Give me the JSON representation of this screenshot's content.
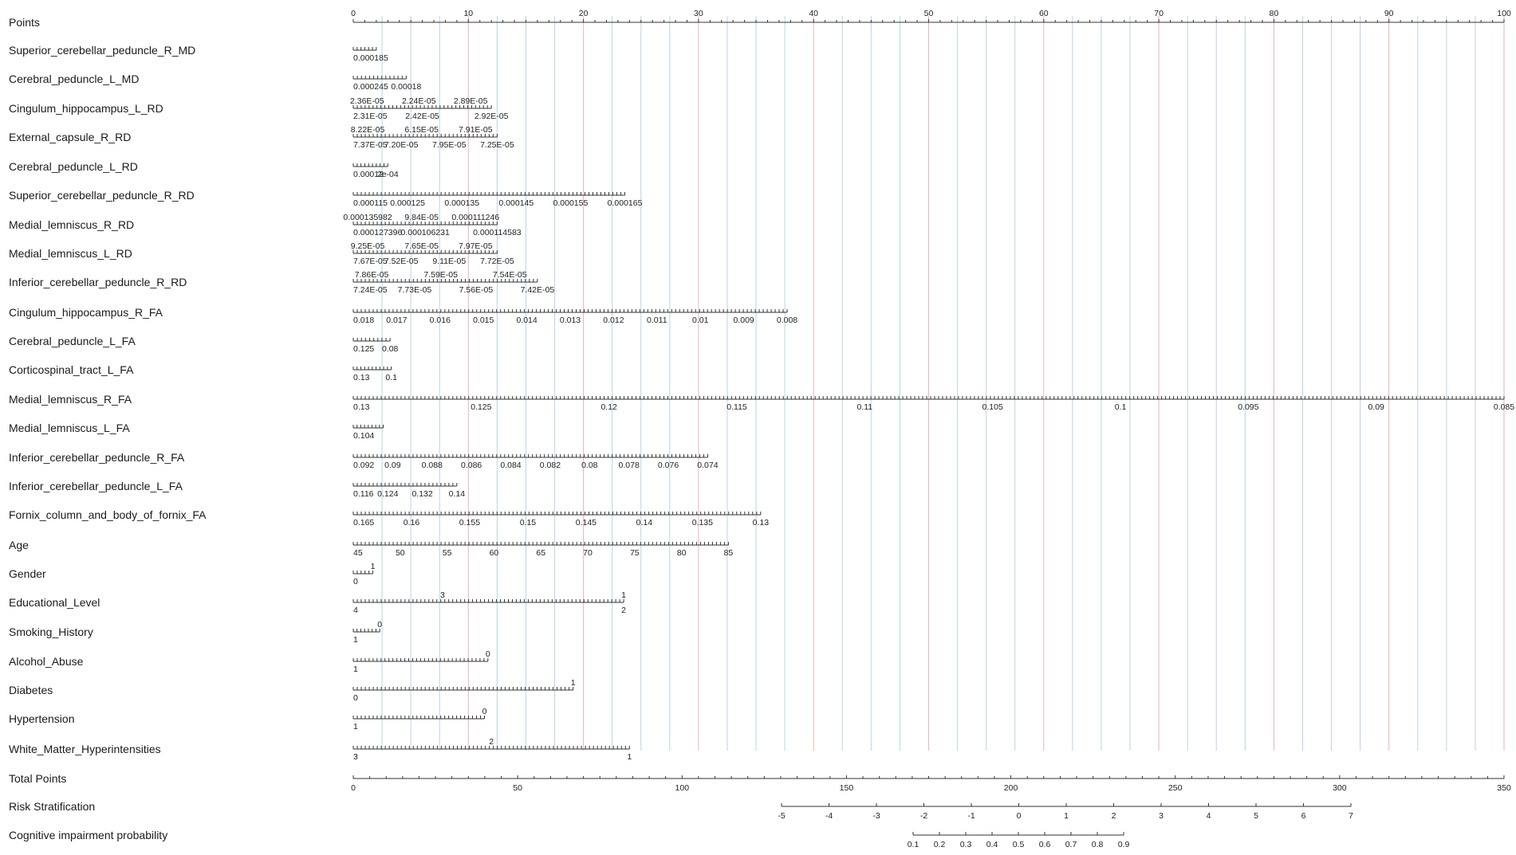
{
  "colors": {
    "grid_blue": "#bcd3e6",
    "grid_red": "#e6b6b6",
    "axis": "#333333",
    "text": "#1a1a1a"
  },
  "chart_data": {
    "type": "nomogram",
    "grid": true,
    "point_range": [
      0,
      100
    ],
    "variables": [
      {
        "name": "Points",
        "ticks_above": [
          0,
          10,
          20,
          30,
          40,
          50,
          60,
          70,
          80,
          90,
          100
        ],
        "ticks_below": [],
        "range": [
          0,
          100
        ]
      },
      {
        "name": "Superior_cerebellar_peduncle_R_MD",
        "ticks_above": [],
        "ticks_below": [
          "0.000185"
        ],
        "range": [
          0,
          2
        ]
      },
      {
        "name": "Cerebral_peduncle_L_MD",
        "ticks_above": [],
        "ticks_below": [
          "0.000245",
          "0.00018"
        ],
        "range": [
          0,
          4.6
        ]
      },
      {
        "name": "Cingulum_hippocampus_L_RD",
        "ticks_above": [
          "2.36E-05",
          "2.24E-05",
          "2.89E-05"
        ],
        "ticks_below": [
          "2.31E-05",
          "2.42E-05",
          "2.92E-05"
        ],
        "range": [
          0,
          12
        ]
      },
      {
        "name": "External_capsule_R_RD",
        "ticks_above": [
          "8.22E-05",
          "6.15E-05",
          "7.91E-05"
        ],
        "ticks_below": [
          "7.37E-05",
          "7.20E-05",
          "7.95E-05",
          "7.25E-05"
        ],
        "range": [
          0,
          12.5
        ]
      },
      {
        "name": "Cerebral_peduncle_L_RD",
        "ticks_above": [],
        "ticks_below": [
          "0.00012",
          "2e-04"
        ],
        "range": [
          0,
          3
        ]
      },
      {
        "name": "Superior_cerebellar_peduncle_R_RD",
        "ticks_above": [],
        "ticks_below": [
          "0.000115",
          "0.000125",
          "0.000135",
          "0.000145",
          "0.000155",
          "0.000165"
        ],
        "range": [
          0,
          23.6
        ]
      },
      {
        "name": "Medial_lemniscus_R_RD",
        "ticks_above": [
          "0.000135982",
          "9.84E-05",
          "0.000111246"
        ],
        "ticks_below": [
          "0.000127396",
          "0.000106231",
          "0.000114583"
        ],
        "range": [
          0,
          12.5
        ]
      },
      {
        "name": "Medial_lemniscus_L_RD",
        "ticks_above": [
          "9.25E-05",
          "7.65E-05",
          "7.97E-05"
        ],
        "ticks_below": [
          "7.67E-05",
          "7.52E-05",
          "9.11E-05",
          "7.72E-05"
        ],
        "range": [
          0,
          12.5
        ]
      },
      {
        "name": "Inferior_cerebellar_peduncle_R_RD",
        "ticks_above": [
          "7.86E-05",
          "7.59E-05",
          "7.54E-05"
        ],
        "ticks_below": [
          "7.24E-05",
          "7.73E-05",
          "7.56E-05",
          "7.42E-05"
        ],
        "range": [
          0,
          16
        ]
      },
      {
        "name": "Cingulum_hippocampus_R_FA",
        "ticks_above": [],
        "ticks_below": [
          "0.018",
          "0.017",
          "0.016",
          "0.015",
          "0.014",
          "0.013",
          "0.012",
          "0.011",
          "0.01",
          "0.009",
          "0.008"
        ],
        "range": [
          0,
          37.7
        ]
      },
      {
        "name": "Cerebral_peduncle_L_FA",
        "ticks_above": [],
        "ticks_below": [
          "0.125",
          "0.08"
        ],
        "range": [
          0,
          3.2
        ]
      },
      {
        "name": "Corticospinal_tract_L_FA",
        "ticks_above": [],
        "ticks_below": [
          "0.13",
          "0.1"
        ],
        "range": [
          0,
          3.3
        ]
      },
      {
        "name": "Medial_lemniscus_R_FA",
        "ticks_above": [],
        "ticks_below": [
          "0.13",
          "0.125",
          "0.12",
          "0.115",
          "0.11",
          "0.105",
          "0.1",
          "0.095",
          "0.09",
          "0.085"
        ],
        "range": [
          0,
          100
        ]
      },
      {
        "name": "Medial_lemniscus_L_FA",
        "ticks_above": [],
        "ticks_below": [
          "0.104"
        ],
        "range": [
          0,
          2.6
        ]
      },
      {
        "name": "Inferior_cerebellar_peduncle_R_FA",
        "ticks_above": [],
        "ticks_below": [
          "0.092",
          "0.09",
          "0.088",
          "0.086",
          "0.084",
          "0.082",
          "0.08",
          "0.078",
          "0.076",
          "0.074"
        ],
        "range": [
          0,
          30.8
        ]
      },
      {
        "name": "Inferior_cerebellar_peduncle_L_FA",
        "ticks_above": [],
        "ticks_below": [
          "0.116",
          "0.124",
          "0.132",
          "0.14"
        ],
        "range": [
          0,
          9
        ]
      },
      {
        "name": "Fornix_column_and_body_of_fornix_FA",
        "ticks_above": [],
        "ticks_below": [
          "0.165",
          "0.16",
          "0.155",
          "0.15",
          "0.145",
          "0.14",
          "0.135",
          "0.13"
        ],
        "range": [
          0,
          35.4
        ]
      },
      {
        "name": "Age",
        "ticks_above": [],
        "ticks_below": [
          "45",
          "50",
          "55",
          "60",
          "65",
          "70",
          "75",
          "80",
          "85"
        ],
        "range": [
          0,
          32.6
        ]
      },
      {
        "name": "Gender",
        "ticks_above": [
          "1"
        ],
        "ticks_below": [
          "0"
        ],
        "range": [
          0,
          1.7
        ]
      },
      {
        "name": "Educational_Level",
        "ticks_above": [
          "3",
          "1"
        ],
        "ticks_below": [
          "4",
          "2"
        ],
        "range": [
          0,
          23.5
        ]
      },
      {
        "name": "Smoking_History",
        "ticks_above": [
          "0"
        ],
        "ticks_below": [
          "1"
        ],
        "range": [
          0,
          2.3
        ]
      },
      {
        "name": "Alcohol_Abuse",
        "ticks_above": [
          "0"
        ],
        "ticks_below": [
          "1"
        ],
        "range": [
          0,
          11.7
        ]
      },
      {
        "name": "Diabetes",
        "ticks_above": [
          "1"
        ],
        "ticks_below": [
          "0"
        ],
        "range": [
          0,
          19.1
        ]
      },
      {
        "name": "Hypertension",
        "ticks_above": [
          "0"
        ],
        "ticks_below": [
          "1"
        ],
        "range": [
          0,
          11.4
        ]
      },
      {
        "name": "White_Matter_Hyperintensities",
        "ticks_above": [
          "2"
        ],
        "ticks_below": [
          "3",
          "1"
        ],
        "range": [
          0,
          24
        ]
      },
      {
        "name": "Total Points",
        "ticks_above": [],
        "ticks_below": [
          0,
          50,
          100,
          150,
          200,
          250,
          300,
          350
        ],
        "range": [
          0,
          350
        ]
      },
      {
        "name": "Risk Stratification",
        "ticks_above": [],
        "ticks_below": [
          -5,
          -4,
          -3,
          -2,
          -1,
          0,
          1,
          2,
          3,
          4,
          5,
          6,
          7
        ],
        "range": [
          -5,
          7
        ]
      },
      {
        "name": "Cognitive impairment probability",
        "ticks_above": [],
        "ticks_below": [
          0.1,
          0.2,
          0.3,
          0.4,
          0.5,
          0.6,
          0.7,
          0.8,
          0.9
        ],
        "range": [
          0.1,
          0.9
        ]
      }
    ]
  }
}
